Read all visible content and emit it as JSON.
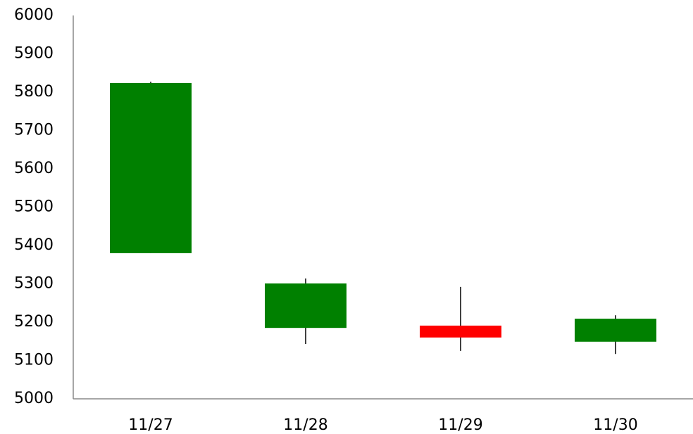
{
  "chart_data": {
    "type": "candlestick",
    "categories": [
      "11/27",
      "11/28",
      "11/29",
      "11/30"
    ],
    "open": [
      5824,
      5301,
      5160,
      5209
    ],
    "high": [
      5827,
      5314,
      5292,
      5218
    ],
    "low": [
      5380,
      5143,
      5125,
      5117
    ],
    "close": [
      5380,
      5185,
      5191,
      5149
    ],
    "up_color": "#ff0000",
    "down_color": "#008000",
    "wick_color": "#000000",
    "ylim": [
      5000,
      6000
    ],
    "yticks": [
      5000,
      5100,
      5200,
      5300,
      5400,
      5500,
      5600,
      5700,
      5800,
      5900,
      6000
    ],
    "grid": false
  }
}
